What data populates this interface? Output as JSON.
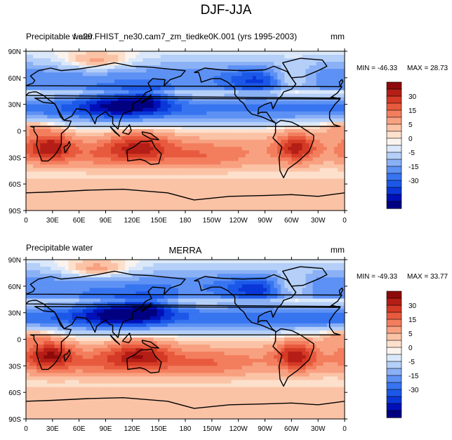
{
  "figure_title": "DJF-JJA",
  "chart_data": [
    {
      "type": "heatmap",
      "left_string": "Precipitable water",
      "center_string": "f.e20.FHIST_ne30.cam7_zm_tiedke0K.001 (yrs 1995-2003)",
      "units": "mm",
      "min_label": "MIN = -46.33",
      "max_label": "MAX =  28.73",
      "min": -46.33,
      "max": 28.73,
      "x_tick_labels": [
        "0",
        "30E",
        "60E",
        "90E",
        "120E",
        "150E",
        "180",
        "150W",
        "120W",
        "90W",
        "60W",
        "30W",
        "0"
      ],
      "y_tick_labels": [
        "90N",
        "60N",
        "30N",
        "0",
        "30S",
        "60S",
        "90S"
      ],
      "colorbar_labels": [
        "30",
        "15",
        "5",
        "0",
        "-5",
        "-15",
        "-30"
      ],
      "contour_levels": [
        -40,
        -35,
        -30,
        -25,
        -20,
        -15,
        -10,
        -5,
        -2,
        0,
        2,
        5,
        10,
        15,
        20,
        25,
        30,
        35
      ],
      "colors": [
        "#000080",
        "#0010b8",
        "#0a37d8",
        "#1c58e8",
        "#3774f0",
        "#5d91f4",
        "#8ab0f6",
        "#b4cff8",
        "#dae8fa",
        "#fbf4ee",
        "#fde0cc",
        "#fbc3a6",
        "#f8a181",
        "#f37e5e",
        "#e85a3e",
        "#d43a25",
        "#b41e16",
        "#8e0a0a"
      ]
    },
    {
      "type": "heatmap",
      "left_string": "Precipitable water",
      "center_string": "MERRA",
      "units": "mm",
      "min_label": "MIN = -49.33",
      "max_label": "MAX =  33.77",
      "min": -49.33,
      "max": 33.77,
      "x_tick_labels": [
        "0",
        "30E",
        "60E",
        "90E",
        "120E",
        "150E",
        "180",
        "150W",
        "120W",
        "90W",
        "60W",
        "30W",
        "0"
      ],
      "y_tick_labels": [
        "90N",
        "60N",
        "30N",
        "0",
        "30S",
        "60S",
        "90S"
      ],
      "colorbar_labels": [
        "30",
        "15",
        "5",
        "0",
        "-5",
        "-15",
        "-30"
      ],
      "contour_levels": [
        -40,
        -35,
        -30,
        -25,
        -20,
        -15,
        -10,
        -5,
        -2,
        0,
        2,
        5,
        10,
        15,
        20,
        25,
        30,
        35
      ],
      "colors": [
        "#000080",
        "#0010b8",
        "#0a37d8",
        "#1c58e8",
        "#3774f0",
        "#5d91f4",
        "#8ab0f6",
        "#b4cff8",
        "#dae8fa",
        "#fbf4ee",
        "#fde0cc",
        "#fbc3a6",
        "#f8a181",
        "#f37e5e",
        "#e85a3e",
        "#d43a25",
        "#b41e16",
        "#8e0a0a"
      ]
    }
  ]
}
